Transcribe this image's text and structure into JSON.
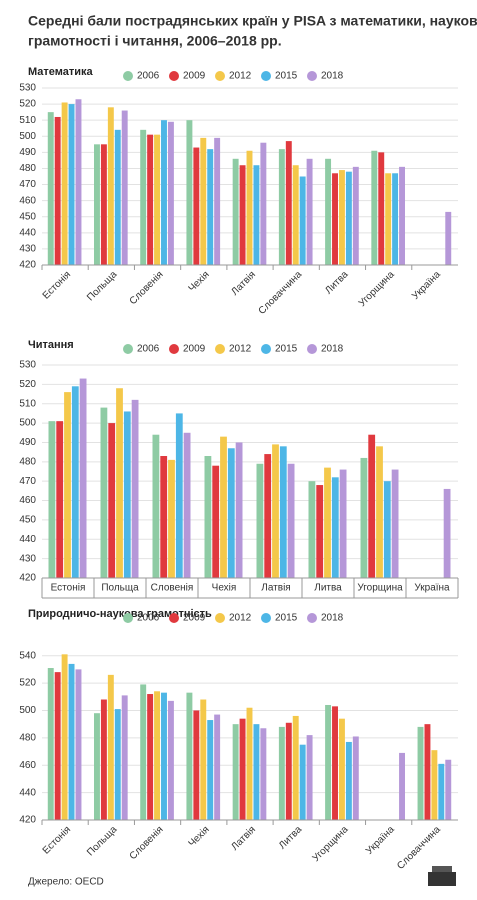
{
  "title": [
    "Середні бали пострадянських країн у PISA з математики, наукової",
    "грамотності і читання, 2006–2018 рр."
  ],
  "source": "Джерело: OECD",
  "chart_data": [
    {
      "type": "bar",
      "title": "Математика",
      "label_style": "rotated",
      "categories": [
        "Естонія",
        "Польща",
        "Словенія",
        "Чехія",
        "Латвія",
        "Словаччина",
        "Литва",
        "Угорщина",
        "Україна"
      ],
      "series": [
        {
          "name": "2006",
          "color": "#8ecba4",
          "values": [
            515,
            495,
            504,
            510,
            486,
            492,
            486,
            491,
            null
          ]
        },
        {
          "name": "2009",
          "color": "#e0393e",
          "values": [
            512,
            495,
            501,
            493,
            482,
            497,
            477,
            490,
            null
          ]
        },
        {
          "name": "2012",
          "color": "#f4c84a",
          "values": [
            521,
            518,
            501,
            499,
            491,
            482,
            479,
            477,
            null
          ]
        },
        {
          "name": "2015",
          "color": "#4db6e6",
          "values": [
            520,
            504,
            510,
            492,
            482,
            475,
            478,
            477,
            null
          ]
        },
        {
          "name": "2018",
          "color": "#b597d8",
          "values": [
            523,
            516,
            509,
            499,
            496,
            486,
            481,
            481,
            453
          ]
        }
      ],
      "ylim": [
        420,
        530
      ],
      "yticks": [
        420,
        430,
        440,
        450,
        460,
        470,
        480,
        490,
        500,
        510,
        520,
        530
      ],
      "grid": true
    },
    {
      "type": "bar",
      "title": "Читання",
      "label_style": "flat",
      "categories": [
        "Естонія",
        "Польща",
        "Словенія",
        "Чехія",
        "Латвія",
        "Литва",
        "Угорщина",
        "Україна"
      ],
      "series": [
        {
          "name": "2006",
          "color": "#8ecba4",
          "values": [
            501,
            508,
            494,
            483,
            479,
            470,
            482,
            null
          ]
        },
        {
          "name": "2009",
          "color": "#e0393e",
          "values": [
            501,
            500,
            483,
            478,
            484,
            468,
            494,
            null
          ]
        },
        {
          "name": "2012",
          "color": "#f4c84a",
          "values": [
            516,
            518,
            481,
            493,
            489,
            477,
            488,
            null
          ]
        },
        {
          "name": "2015",
          "color": "#4db6e6",
          "values": [
            519,
            506,
            505,
            487,
            488,
            472,
            470,
            null
          ]
        },
        {
          "name": "2018",
          "color": "#b597d8",
          "values": [
            523,
            512,
            495,
            490,
            479,
            476,
            476,
            466
          ]
        }
      ],
      "ylim": [
        420,
        530
      ],
      "yticks": [
        420,
        430,
        440,
        450,
        460,
        470,
        480,
        490,
        500,
        510,
        520,
        530
      ],
      "grid": true
    },
    {
      "type": "bar",
      "title": "Природничо-наукова грамотність",
      "label_style": "rotated",
      "categories": [
        "Естонія",
        "Польща",
        "Словенія",
        "Чехія",
        "Латвія",
        "Литва",
        "Угорщина",
        "Україна",
        "Словаччина"
      ],
      "series": [
        {
          "name": "2006",
          "color": "#8ecba4",
          "values": [
            531,
            498,
            519,
            513,
            490,
            488,
            504,
            null,
            488
          ]
        },
        {
          "name": "2009",
          "color": "#e0393e",
          "values": [
            528,
            508,
            512,
            500,
            494,
            491,
            503,
            null,
            490
          ]
        },
        {
          "name": "2012",
          "color": "#f4c84a",
          "values": [
            541,
            526,
            514,
            508,
            502,
            496,
            494,
            null,
            471
          ]
        },
        {
          "name": "2015",
          "color": "#4db6e6",
          "values": [
            534,
            501,
            513,
            493,
            490,
            475,
            477,
            null,
            461
          ]
        },
        {
          "name": "2018",
          "color": "#b597d8",
          "values": [
            530,
            511,
            507,
            497,
            487,
            482,
            481,
            469,
            464
          ]
        }
      ],
      "ylim": [
        420,
        550
      ],
      "yticks": [
        420,
        440,
        460,
        480,
        500,
        520,
        540
      ],
      "grid": true
    }
  ]
}
